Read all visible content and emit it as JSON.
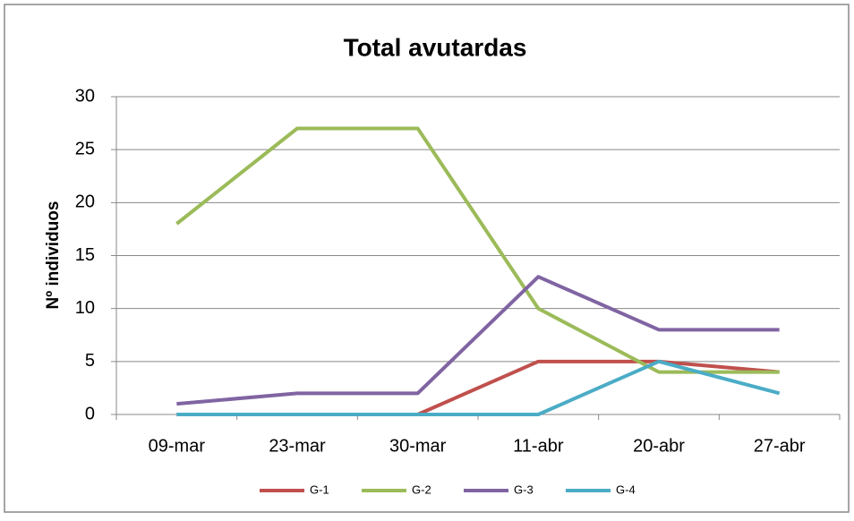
{
  "chart_data": {
    "type": "line",
    "title": "Total avutardas",
    "y_label": "Nº individuos",
    "categories": [
      "09-mar",
      "23-mar",
      "30-mar",
      "11-abr",
      "20-abr",
      "27-abr"
    ],
    "series": [
      {
        "name": "G-1",
        "color": "#c0504d",
        "values": [
          0,
          0,
          0,
          5,
          5,
          4
        ]
      },
      {
        "name": "G-2",
        "color": "#9bbb59",
        "values": [
          18,
          27,
          27,
          10,
          4,
          4
        ]
      },
      {
        "name": "G-3",
        "color": "#8064a2",
        "values": [
          1,
          2,
          2,
          13,
          8,
          8
        ]
      },
      {
        "name": "G-4",
        "color": "#4bacc6",
        "values": [
          0,
          0,
          0,
          0,
          5,
          2
        ]
      }
    ],
    "ylim": [
      0,
      30
    ],
    "yticks": [
      0,
      5,
      10,
      15,
      20,
      25,
      30
    ],
    "grid": true,
    "legend": "bottom"
  }
}
